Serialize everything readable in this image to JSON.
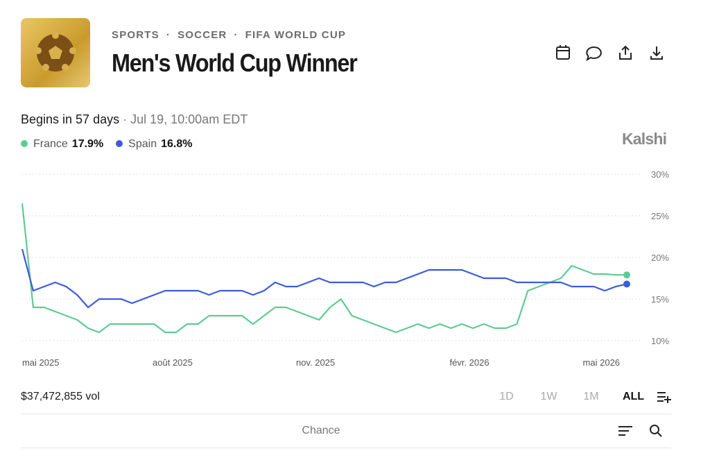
{
  "header": {
    "breadcrumb": [
      "SPORTS",
      "SOCCER",
      "FIFA WORLD CUP"
    ],
    "separator": "·",
    "title": "Men's World Cup Winner"
  },
  "status": {
    "begins": "Begins in 57 days",
    "date": "· Jul 19, 10:00am EDT"
  },
  "brand": "Kalshi",
  "chart_data": {
    "type": "line",
    "categories": [
      null,
      null,
      "mai 2025",
      null,
      null,
      null,
      null,
      null,
      null,
      null,
      null,
      null,
      null,
      null,
      "août 2025",
      null,
      null,
      null,
      null,
      null,
      null,
      null,
      null,
      null,
      null,
      null,
      null,
      "nov. 2025",
      null,
      null,
      null,
      null,
      null,
      null,
      null,
      null,
      null,
      null,
      null,
      null,
      null,
      "févr. 2026",
      null,
      null,
      null,
      null,
      null,
      null,
      null,
      null,
      null,
      null,
      null,
      "mai 2026",
      null,
      null
    ],
    "series": [
      {
        "name": "France",
        "color": "#5fcb92",
        "current": 17.9,
        "current_label": "17.9%",
        "values": [
          26.5,
          14,
          14,
          13.5,
          13,
          12.5,
          11.5,
          11,
          12,
          12,
          12,
          12,
          12,
          11,
          11,
          12,
          12,
          13,
          13,
          13,
          13,
          12,
          13,
          14,
          14,
          13.5,
          13,
          12.5,
          14,
          15,
          13,
          12.5,
          12,
          11.5,
          11,
          11.5,
          12,
          11.5,
          12,
          11.5,
          12,
          11.5,
          12,
          11.5,
          11.5,
          12,
          16,
          16.5,
          17,
          17.5,
          19,
          18.5,
          18,
          18,
          17.9,
          17.9
        ]
      },
      {
        "name": "Spain",
        "color": "#3b5bdb",
        "current": 16.8,
        "current_label": "16.8%",
        "values": [
          21,
          16,
          16.5,
          17,
          16.5,
          15.5,
          14,
          15,
          15,
          15,
          14.5,
          15,
          15.5,
          16,
          16,
          16,
          16,
          15.5,
          16,
          16,
          16,
          15.5,
          16,
          17,
          16.5,
          16.5,
          17,
          17.5,
          17,
          17,
          17,
          17,
          16.5,
          17,
          17,
          17.5,
          18,
          18.5,
          18.5,
          18.5,
          18.5,
          18,
          17.5,
          17.5,
          17.5,
          17,
          17,
          17,
          17,
          17,
          16.5,
          16.5,
          16.5,
          16,
          16.5,
          16.8
        ]
      }
    ],
    "ylim": [
      9,
      30.8
    ],
    "yticks": [
      {
        "value": 10,
        "label": "10%"
      },
      {
        "value": 15,
        "label": "15%"
      },
      {
        "value": 20,
        "label": "20%"
      },
      {
        "value": 25,
        "label": "25%"
      },
      {
        "value": 30,
        "label": "30%"
      }
    ],
    "grid": true
  },
  "footer": {
    "volume": "$37,472,855 vol",
    "ranges": [
      "1D",
      "1W",
      "1M",
      "ALL"
    ],
    "sort_label": "Chance"
  }
}
